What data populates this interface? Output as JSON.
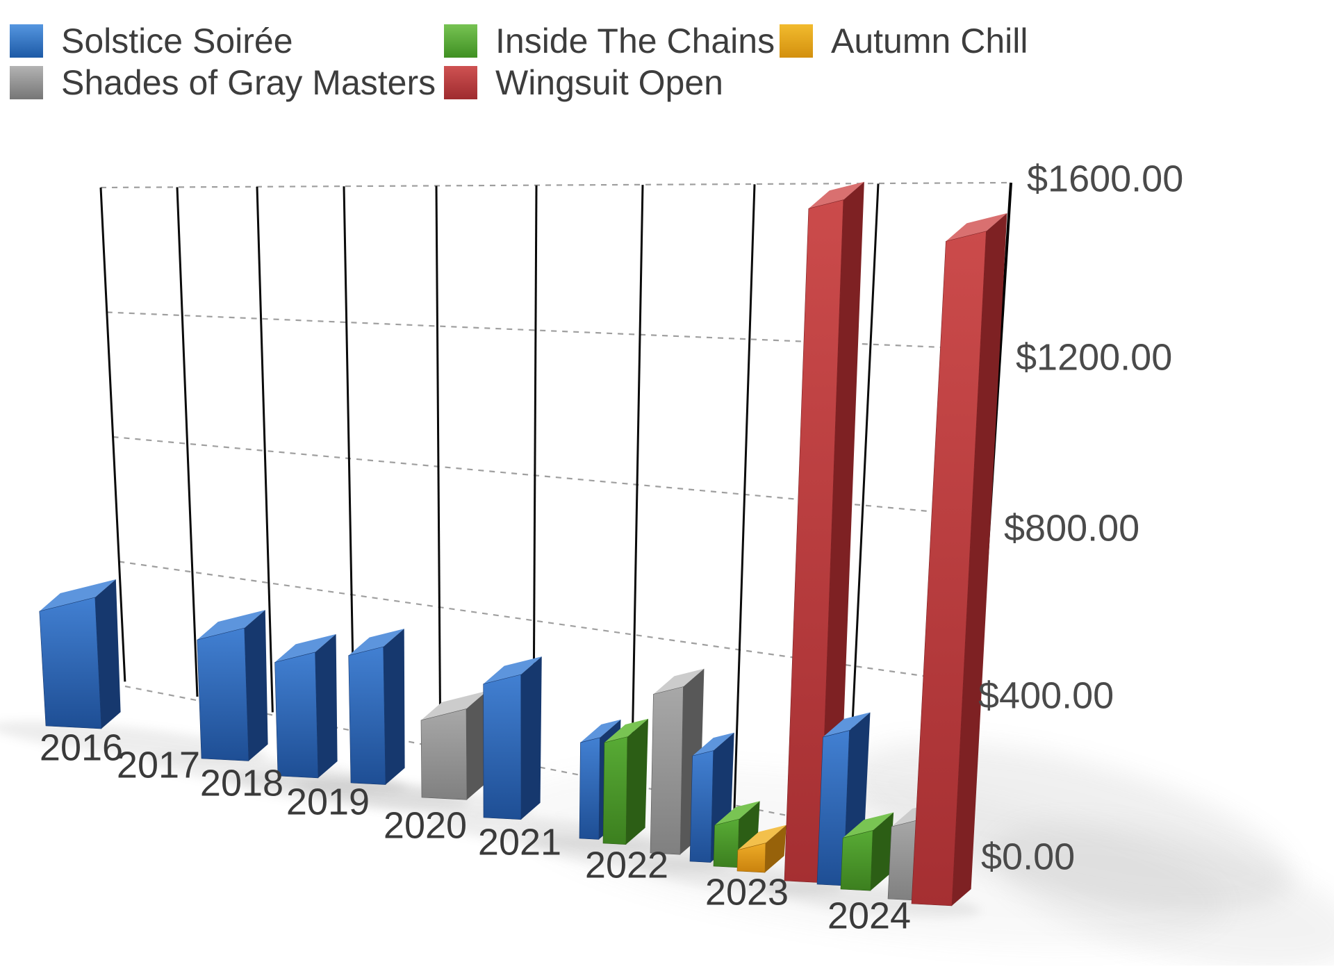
{
  "legend": {
    "position": "top-left",
    "items": [
      {
        "label": "Solstice Soirée",
        "color": "#2e6fbe",
        "swatch": "blue"
      },
      {
        "label": "Inside The Chains",
        "color": "#55a733",
        "swatch": "green"
      },
      {
        "label": "Autumn Chill",
        "color": "#e8a41f",
        "swatch": "orange"
      },
      {
        "label": "Shades of Gray Masters",
        "color": "#8e8e8e",
        "swatch": "gray"
      },
      {
        "label": "Wingsuit Open",
        "color": "#bf3a3e",
        "swatch": "red"
      }
    ]
  },
  "chart_data": {
    "type": "bar",
    "style": "3d-perspective",
    "categories": [
      "2016",
      "2017",
      "2018",
      "2019",
      "2020",
      "2021",
      "2022",
      "2023",
      "2024"
    ],
    "y_ticks": [
      "$0.00",
      "$400.00",
      "$800.00",
      "$1200.00",
      "$1600.00"
    ],
    "ylim": [
      0,
      1600
    ],
    "grid": true,
    "currency": "$",
    "legend_position": "top-left",
    "series": [
      {
        "name": "Solstice Soirée",
        "color": "#2e6fbe",
        "values": [
          365,
          355,
          330,
          360,
          0,
          360,
          250,
          265,
          355
        ]
      },
      {
        "name": "Inside The Chains",
        "color": "#55a733",
        "values": [
          0,
          0,
          0,
          0,
          0,
          0,
          255,
          100,
          120
        ]
      },
      {
        "name": "Autumn Chill",
        "color": "#e8a41f",
        "values": [
          0,
          0,
          0,
          0,
          0,
          0,
          0,
          50,
          0
        ]
      },
      {
        "name": "Shades of Gray Masters",
        "color": "#8e8e8e",
        "values": [
          0,
          0,
          0,
          200,
          0,
          0,
          380,
          0,
          160
        ]
      },
      {
        "name": "Wingsuit Open",
        "color": "#bf3a3e",
        "values": [
          0,
          0,
          0,
          0,
          0,
          0,
          0,
          1510,
          1430
        ]
      }
    ]
  }
}
